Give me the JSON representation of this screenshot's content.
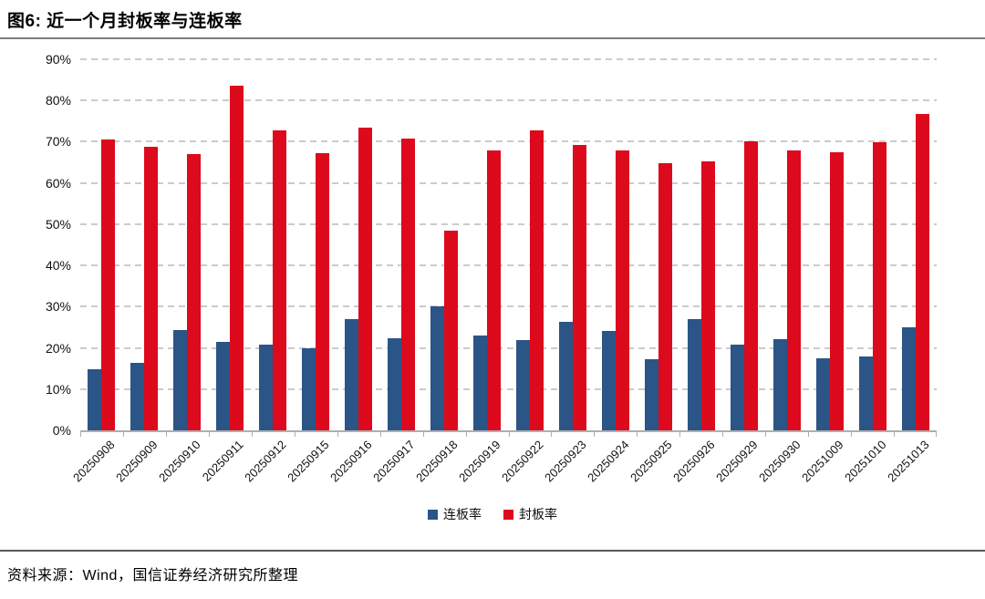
{
  "figure": {
    "title": "图6: 近一个月封板率与连板率",
    "source": "资料来源：Wind，国信证券经济研究所整理"
  },
  "chart_data": {
    "type": "bar",
    "title": "近一个月封板率与连板率",
    "xlabel": "",
    "ylabel": "",
    "ylim": [
      0,
      90
    ],
    "ytick_step": 10,
    "ytick_labels": [
      "0%",
      "10%",
      "20%",
      "30%",
      "40%",
      "50%",
      "60%",
      "70%",
      "80%",
      "90%"
    ],
    "grid": "horizontal-dashed",
    "legend_position": "bottom-center",
    "categories": [
      "20250908",
      "20250909",
      "20250910",
      "20250911",
      "20250912",
      "20250915",
      "20250916",
      "20250917",
      "20250918",
      "20250919",
      "20250922",
      "20250923",
      "20250924",
      "20250925",
      "20250926",
      "20250929",
      "20250930",
      "20251009",
      "20251010",
      "20251013"
    ],
    "series": [
      {
        "name": "连板率",
        "color": "#2B5586",
        "values": [
          14.8,
          16.3,
          24.3,
          21.5,
          20.9,
          20.0,
          26.9,
          22.4,
          30.0,
          23.1,
          21.9,
          26.4,
          24.0,
          17.2,
          26.9,
          20.7,
          22.1,
          17.4,
          18.0,
          25.1
        ]
      },
      {
        "name": "封板率",
        "color": "#DC0A1C",
        "values": [
          70.5,
          68.7,
          67.0,
          83.5,
          72.8,
          67.2,
          73.5,
          70.8,
          48.5,
          67.8,
          72.7,
          69.3,
          68.0,
          64.9,
          65.2,
          70.1,
          67.8,
          67.5,
          69.9,
          76.8
        ]
      }
    ]
  }
}
